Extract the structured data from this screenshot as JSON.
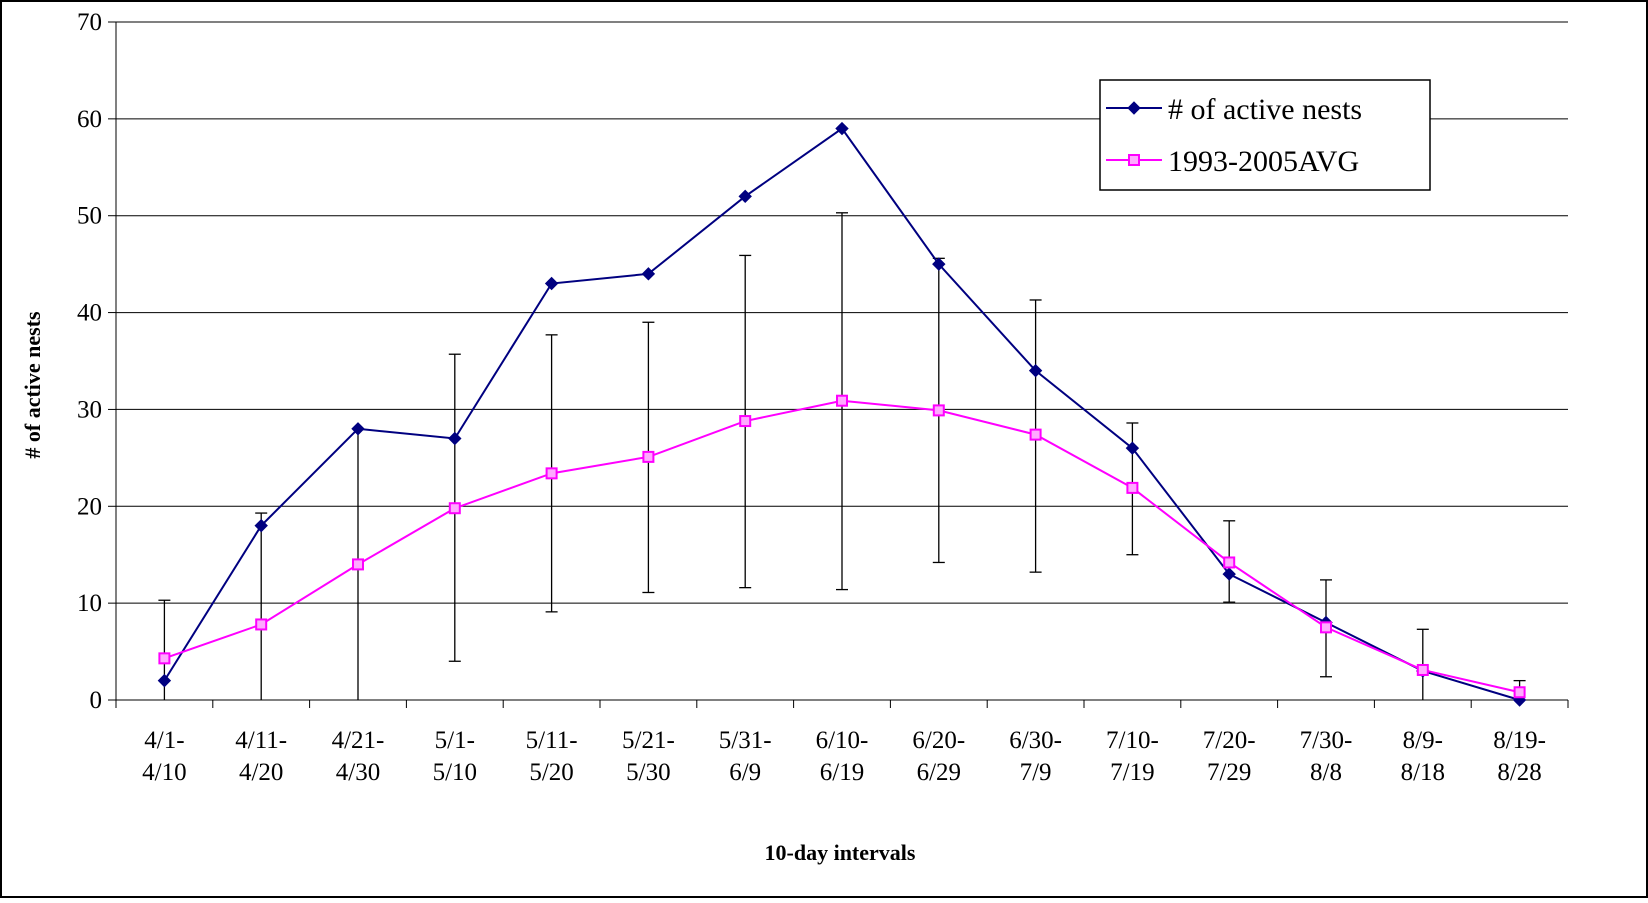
{
  "chart_data": {
    "type": "line",
    "title": "",
    "xlabel": "10-day intervals",
    "ylabel": "# of active nests",
    "ylim": [
      0,
      70
    ],
    "yticks": [
      "0",
      "10",
      "20",
      "30",
      "40",
      "50",
      "60",
      "70"
    ],
    "grid": true,
    "legend_position": "top-right",
    "categories": [
      [
        "4/1-",
        "4/10"
      ],
      [
        "4/11-",
        "4/20"
      ],
      [
        "4/21-",
        "4/30"
      ],
      [
        "5/1-",
        "5/10"
      ],
      [
        "5/11-",
        "5/20"
      ],
      [
        "5/21-",
        "5/30"
      ],
      [
        "5/31-",
        "6/9"
      ],
      [
        "6/10-",
        "6/19"
      ],
      [
        "6/20-",
        "6/29"
      ],
      [
        "6/30-",
        "7/9"
      ],
      [
        "7/10-",
        "7/19"
      ],
      [
        "7/20-",
        "7/29"
      ],
      [
        "7/30-",
        "8/8"
      ],
      [
        "8/9-",
        "8/18"
      ],
      [
        "8/19-",
        "8/28"
      ]
    ],
    "series": [
      {
        "name": "# of active nests",
        "color": "#000080",
        "marker": "diamond",
        "values": [
          2,
          18,
          28,
          27,
          43,
          44,
          52,
          59,
          45,
          34,
          26,
          13,
          8,
          3,
          0
        ]
      },
      {
        "name": "1993-2005AVG",
        "color": "#FF00FF",
        "marker": "square",
        "values": [
          4.3,
          7.8,
          14,
          19.8,
          23.4,
          25.1,
          28.8,
          30.9,
          29.9,
          27.4,
          21.9,
          14.2,
          7.5,
          3.1,
          0.8
        ],
        "error_bars": [
          [
            0,
            10.3
          ],
          [
            0,
            19.3
          ],
          [
            0,
            28
          ],
          [
            4,
            35.7
          ],
          [
            9.1,
            37.7
          ],
          [
            11.1,
            39
          ],
          [
            11.6,
            45.9
          ],
          [
            11.4,
            50.3
          ],
          [
            14.2,
            45.6
          ],
          [
            13.2,
            41.3
          ],
          [
            15,
            28.6
          ],
          [
            10.1,
            18.5
          ],
          [
            2.4,
            12.4
          ],
          [
            0,
            7.3
          ],
          [
            0,
            2
          ]
        ]
      }
    ]
  }
}
